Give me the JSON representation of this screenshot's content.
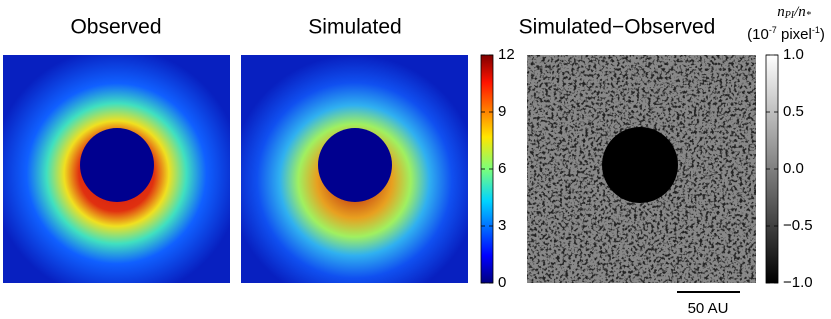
{
  "chart_data": {
    "type": "image",
    "panels": [
      {
        "title": "Observed"
      },
      {
        "title": "Simulated"
      },
      {
        "title": "Simulated−Observed"
      }
    ],
    "colorbars": [
      {
        "ylim": [
          0,
          12
        ],
        "yticks": [
          0,
          3,
          6,
          9,
          12
        ]
      },
      {
        "ylim": [
          -1,
          1
        ],
        "yticks": [
          {
            "value": -1,
            "label": "−1.0"
          },
          {
            "value": -0.5,
            "label": "−0.5"
          },
          {
            "value": 0,
            "label": "0.0"
          },
          {
            "value": 0.5,
            "label": "0.5"
          },
          {
            "value": 1,
            "label": "1.0"
          }
        ],
        "label_parts": [
          "n",
          "PI",
          "/n",
          "*"
        ],
        "unit_parts": [
          "(10",
          "-7",
          " pixel",
          "-1",
          ")"
        ]
      }
    ],
    "scale_bar": "50 AU"
  }
}
